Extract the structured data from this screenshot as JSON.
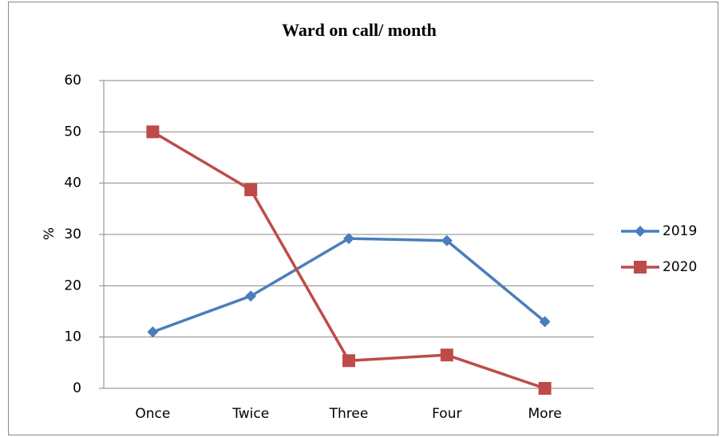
{
  "chart_data": {
    "type": "line",
    "title": "Ward on call/ month",
    "y_label": "%",
    "categories": [
      "Once",
      "Twice",
      "Three",
      "Four",
      "More"
    ],
    "series": [
      {
        "name": "2019",
        "color": "#4a7ebb",
        "marker": "diamond",
        "values": [
          11,
          18,
          29.2,
          28.8,
          13
        ]
      },
      {
        "name": "2020",
        "color": "#be4b48",
        "marker": "square",
        "values": [
          50,
          38.7,
          5.4,
          6.5,
          0
        ]
      }
    ],
    "ylim": [
      0,
      60
    ],
    "yticks": [
      0,
      10,
      20,
      30,
      40,
      50,
      60
    ],
    "grid": true,
    "legend": "right"
  }
}
